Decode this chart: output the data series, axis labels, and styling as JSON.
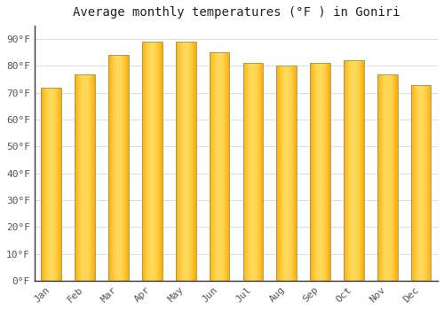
{
  "title": "Average monthly temperatures (°F ) in Goniri",
  "months": [
    "Jan",
    "Feb",
    "Mar",
    "Apr",
    "May",
    "Jun",
    "Jul",
    "Aug",
    "Sep",
    "Oct",
    "Nov",
    "Dec"
  ],
  "values": [
    72,
    77,
    84,
    89,
    89,
    85,
    81,
    80,
    81,
    82,
    77,
    73
  ],
  "bar_color_main": "#FFAA00",
  "bar_color_light": "#FFD060",
  "bar_edge_color": "#888844",
  "background_color": "#ffffff",
  "plot_bg_color": "#ffffff",
  "grid_color": "#dddddd",
  "ylim": [
    0,
    95
  ],
  "yticks": [
    0,
    10,
    20,
    30,
    40,
    50,
    60,
    70,
    80,
    90
  ],
  "ytick_labels": [
    "0°F",
    "10°F",
    "20°F",
    "30°F",
    "40°F",
    "50°F",
    "60°F",
    "70°F",
    "80°F",
    "90°F"
  ],
  "title_fontsize": 10,
  "tick_fontsize": 8,
  "font_family": "monospace"
}
